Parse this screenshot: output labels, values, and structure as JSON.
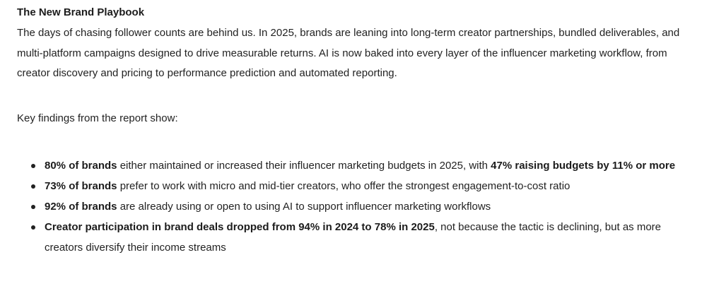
{
  "heading": "The New Brand Playbook",
  "paragraph": "The days of chasing follower counts are behind us. In 2025, brands are leaning into long-term creator partnerships, bundled deliverables, and multi-platform campaigns designed to drive measurable returns. AI is now baked into every layer of the influencer marketing workflow, from creator discovery and pricing to performance prediction and automated reporting.",
  "intro": "Key findings from the report show:",
  "findings": [
    {
      "bold1": "80% of brands",
      "text1": " either maintained or increased their influencer marketing budgets in 2025, with ",
      "bold2": "47% raising budgets by 11% or more",
      "text2": ""
    },
    {
      "bold1": "73% of brands",
      "text1": " prefer to work with micro and mid-tier creators, who offer the strongest engagement-to-cost ratio",
      "bold2": "",
      "text2": ""
    },
    {
      "bold1": "92% of brands",
      "text1": " are already using or open to using AI to support influencer marketing workflows",
      "bold2": "",
      "text2": ""
    },
    {
      "bold1": "Creator participation in brand deals dropped from 94% in 2024 to 78% in 2025",
      "text1": ", not because the tactic is declining, but as more creators diversify their income streams",
      "bold2": "",
      "text2": ""
    }
  ]
}
